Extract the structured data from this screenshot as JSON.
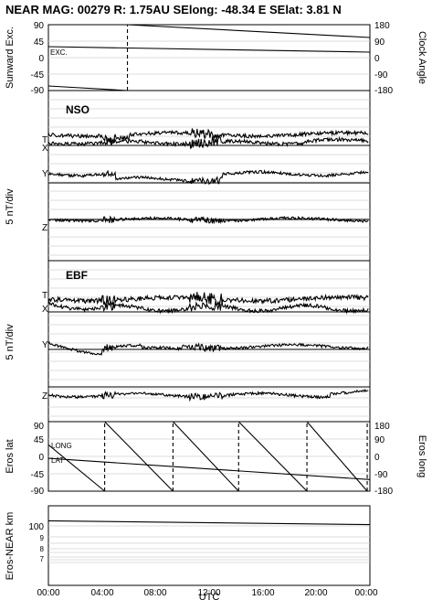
{
  "title": "NEAR MAG: 00279  R: 1.75AU  SElong:  -48.34 E  SElat:    3.81 N",
  "x_axis": {
    "label": "UTC",
    "ticks": [
      "00:00",
      "04:00",
      "08:00",
      "12:00",
      "16:00",
      "20:00",
      "00:00"
    ]
  },
  "chart_data": [
    {
      "type": "line",
      "panel": "sunward-clock",
      "ylabel_left": "Sunward Exc.",
      "ylabel_right": "Clock Angle",
      "left_ticks": [
        "90",
        "45",
        "0",
        "-45",
        "-90"
      ],
      "right_ticks": [
        "180",
        "90",
        "0",
        "-90",
        "-180"
      ],
      "annotation": "EXC.",
      "xlim_hours": [
        0,
        24
      ],
      "series": [
        {
          "style": "solid",
          "x_hours": [
            0,
            24
          ],
          "y": [
            30,
            15
          ],
          "axis": "left"
        },
        {
          "style": "solid-dashed",
          "x_hours": [
            0,
            5.9,
            5.9,
            24
          ],
          "y": [
            -155,
            -180,
            180,
            110
          ],
          "axis": "right"
        }
      ]
    },
    {
      "type": "line",
      "panel": "NSO",
      "section_label": "NSO",
      "ylabel": "5 nT/div",
      "components": [
        "T",
        "X",
        "Y",
        "Z"
      ]
    },
    {
      "type": "line",
      "panel": "EBF",
      "section_label": "EBF",
      "ylabel": "5 nT/div",
      "components": [
        "T",
        "X",
        "Y",
        "Z"
      ]
    },
    {
      "type": "line",
      "panel": "eros-lat-long",
      "ylabel_left": "Eros lat",
      "ylabel_right": "Eros long",
      "left_ticks": [
        "90",
        "45",
        "0",
        "-45",
        "-90"
      ],
      "right_ticks": [
        "180",
        "90",
        "0",
        "-90",
        "-180"
      ],
      "annotation_long": "LONG",
      "annotation_lat": "LAT",
      "xlim_hours": [
        0,
        24
      ],
      "lat_series": {
        "x_hours": [
          0,
          24
        ],
        "y": [
          -5,
          -60
        ]
      },
      "long_wraps_hours": [
        4.2,
        9.3,
        14.2,
        19.3,
        23.8
      ]
    },
    {
      "type": "line",
      "panel": "eros-near-distance",
      "ylabel": "Eros-NEAR km",
      "y_ticks": [
        "100",
        "9",
        "8",
        "7"
      ],
      "xlim_hours": [
        0,
        24
      ],
      "series": [
        {
          "x_hours": [
            0,
            24
          ],
          "y": [
            104,
            101
          ]
        }
      ]
    }
  ]
}
